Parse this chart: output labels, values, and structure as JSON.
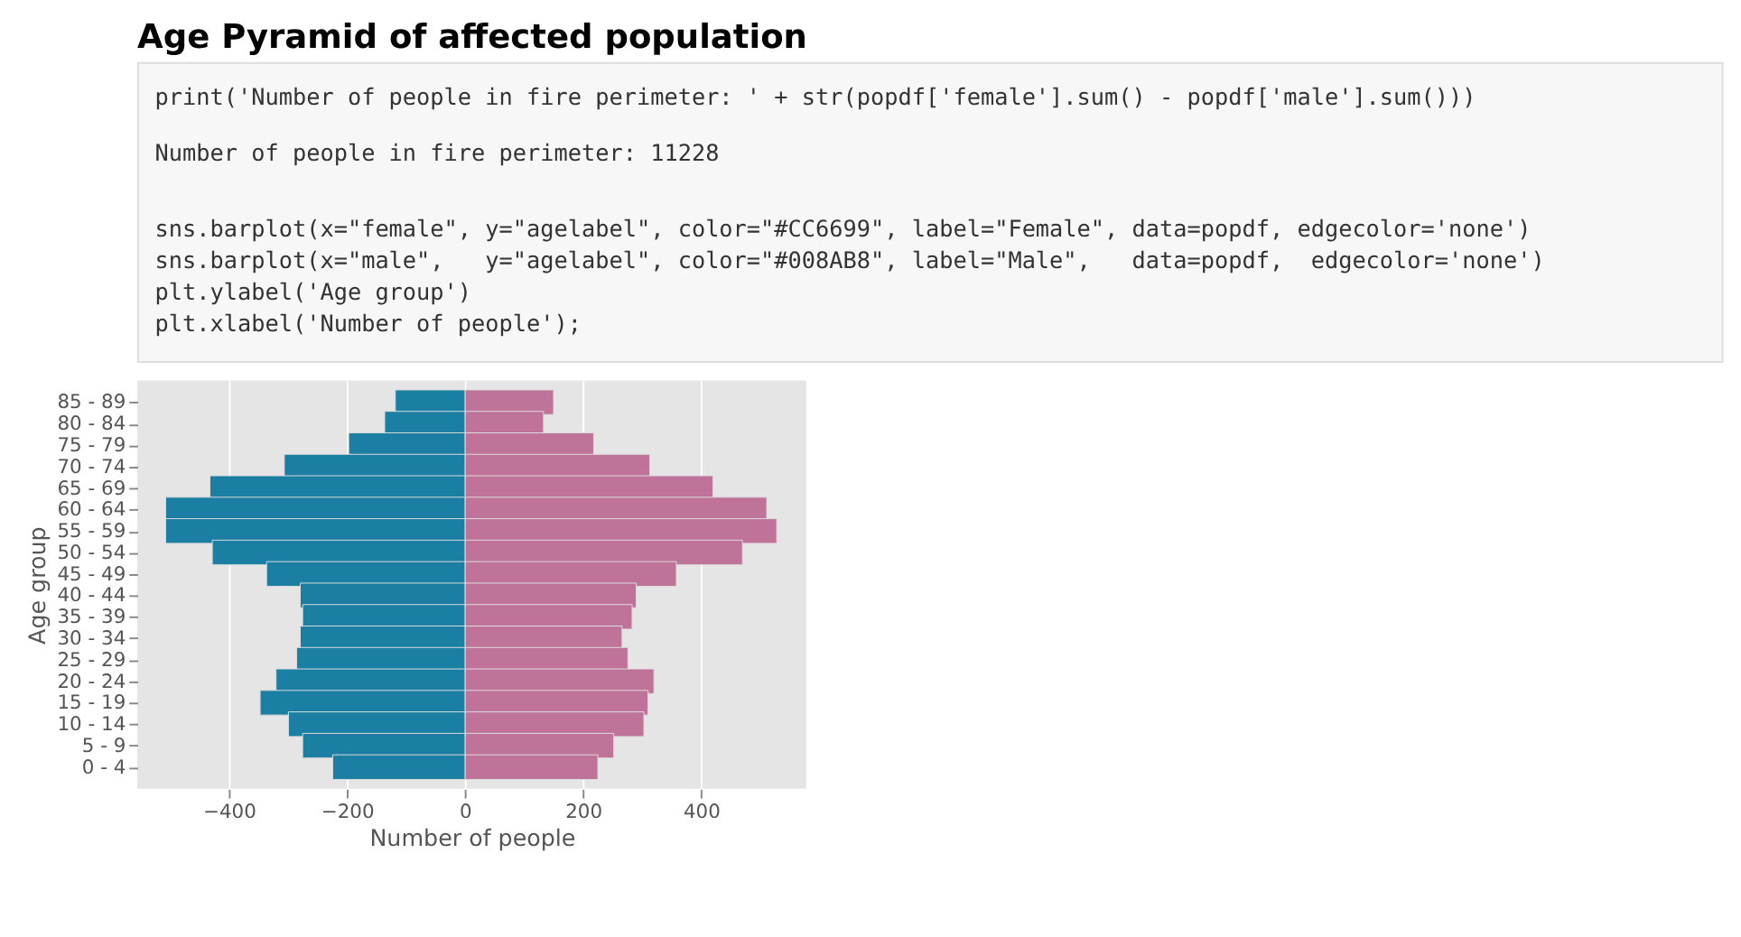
{
  "chart_data": {
    "type": "bar",
    "orientation": "horizontal",
    "title": "Age Pyramid of affected population",
    "annotations": [
      "print('Number of people in fire perimeter: ' + str(popdf['female'].sum() - popdf['male'].sum()))",
      "Number of people in fire perimeter: 11228",
      "sns.barplot(x=\"female\", y=\"agelabel\", color=\"#CC6699\", label=\"Female\", data=popdf, edgecolor='none')",
      "sns.barplot(x=\"male\",   y=\"agelabel\", color=\"#008AB8\", label=\"Male\",   data=popdf,  edgecolor='none')",
      "plt.ylabel('Age group')",
      "plt.xlabel('Number of people');"
    ],
    "xlabel": "Number of people",
    "ylabel": "Age group",
    "categories": [
      "85 - 89",
      "80 - 84",
      "75 - 79",
      "70 - 74",
      "65 - 69",
      "60 - 64",
      "55 - 59",
      "50 - 54",
      "45 - 49",
      "40 - 44",
      "35 - 39",
      "30 - 34",
      "25 - 29",
      "20 - 24",
      "15 - 19",
      "10 - 14",
      "5 - 9",
      "0 - 4"
    ],
    "series": [
      {
        "color": "#c07398",
        "values": [
          150,
          133,
          218,
          313,
          420,
          511,
          528,
          470,
          358,
          290,
          283,
          266,
          276,
          320,
          310,
          303,
          252,
          225
        ]
      },
      {
        "color": "#1a7fa3",
        "values": [
          -118,
          -136,
          -197,
          -306,
          -432,
          -507,
          -507,
          -428,
          -336,
          -279,
          -275,
          -279,
          -285,
          -320,
          -347,
          -299,
          -275,
          -224
        ]
      }
    ],
    "stacked": true,
    "xlim": [
      -555,
      578
    ],
    "xticks": [
      -400,
      -200,
      0,
      200,
      400
    ],
    "grid": "x",
    "legend": false
  }
}
